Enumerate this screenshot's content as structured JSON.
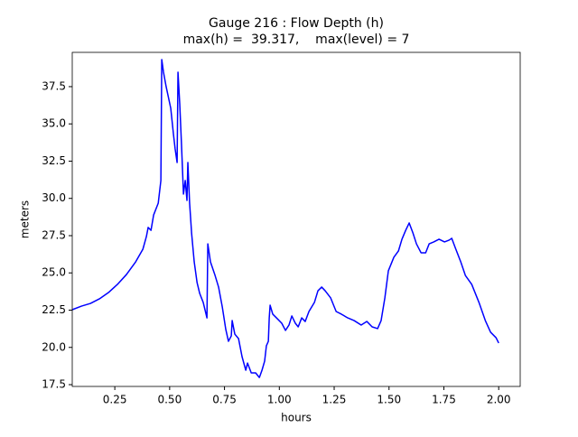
{
  "chart_data": {
    "type": "line",
    "title": "Gauge 216 : Flow Depth (h)",
    "subtitle": "max(h) =  39.317,    max(level) = 7",
    "x_label": "hours",
    "y_label": "meters",
    "xlim": [
      0.056,
      2.098
    ],
    "ylim": [
      17.38,
      39.8
    ],
    "xticks": [
      0.25,
      {
        "value": 0.5,
        "label": "0.50"
      },
      0.75,
      {
        "value": 1.0,
        "label": "1.00"
      },
      1.25,
      {
        "value": 1.5,
        "label": "1.50"
      },
      1.75,
      {
        "value": 2.0,
        "label": "2.00"
      }
    ],
    "yticks": [
      17.5,
      {
        "value": 20.0,
        "label": "20.0"
      },
      22.5,
      {
        "value": 25.0,
        "label": "25.0"
      },
      27.5,
      {
        "value": 30.0,
        "label": "30.0"
      },
      32.5,
      {
        "value": 35.0,
        "label": "35.0"
      },
      37.5
    ],
    "series": [
      {
        "name": "h",
        "color": "#0000ff",
        "x": [
          0.056,
          0.098,
          0.139,
          0.18,
          0.221,
          0.262,
          0.303,
          0.345,
          0.378,
          0.394,
          0.402,
          0.415,
          0.427,
          0.448,
          0.46,
          0.464,
          0.472,
          0.484,
          0.505,
          0.517,
          0.525,
          0.534,
          0.538,
          0.546,
          0.554,
          0.563,
          0.571,
          0.579,
          0.583,
          0.591,
          0.6,
          0.612,
          0.625,
          0.637,
          0.653,
          0.67,
          0.674,
          0.686,
          0.707,
          0.723,
          0.74,
          0.756,
          0.768,
          0.781,
          0.785,
          0.797,
          0.814,
          0.83,
          0.847,
          0.855,
          0.872,
          0.892,
          0.909,
          0.921,
          0.933,
          0.941,
          0.95,
          0.954,
          0.958,
          0.97,
          0.987,
          1.011,
          1.028,
          1.044,
          1.057,
          1.073,
          1.086,
          1.102,
          1.118,
          1.135,
          1.16,
          1.176,
          1.193,
          1.209,
          1.234,
          1.259,
          1.283,
          1.312,
          1.341,
          1.373,
          1.399,
          1.423,
          1.448,
          1.464,
          1.481,
          1.497,
          1.522,
          1.543,
          1.559,
          1.576,
          1.592,
          1.609,
          1.625,
          1.646,
          1.667,
          1.683,
          1.704,
          1.728,
          1.753,
          1.774,
          1.786,
          1.803,
          1.827,
          1.848,
          1.877,
          1.91,
          1.939,
          1.963,
          1.988,
          2.0
        ],
        "values": [
          22.53,
          22.77,
          22.95,
          23.26,
          23.68,
          24.23,
          24.89,
          25.74,
          26.59,
          27.44,
          28.05,
          27.86,
          28.89,
          29.68,
          31.2,
          39.317,
          38.47,
          37.5,
          36.05,
          34.35,
          33.32,
          32.41,
          38.47,
          36.35,
          33.62,
          30.29,
          31.2,
          29.86,
          32.41,
          29.68,
          27.68,
          25.74,
          24.35,
          23.62,
          23.02,
          21.98,
          26.95,
          25.74,
          24.83,
          24.05,
          22.71,
          21.2,
          20.41,
          20.77,
          21.8,
          20.89,
          20.59,
          19.38,
          18.47,
          18.95,
          18.29,
          18.29,
          17.98,
          18.47,
          19.08,
          20.11,
          20.41,
          21.98,
          22.83,
          22.23,
          21.98,
          21.62,
          21.14,
          21.5,
          22.11,
          21.62,
          21.38,
          21.98,
          21.74,
          22.41,
          23.02,
          23.8,
          24.05,
          23.8,
          23.32,
          22.41,
          22.23,
          21.98,
          21.8,
          21.5,
          21.74,
          21.38,
          21.26,
          21.8,
          23.32,
          25.14,
          26.05,
          26.47,
          27.26,
          27.86,
          28.35,
          27.68,
          26.95,
          26.35,
          26.35,
          26.95,
          27.08,
          27.26,
          27.08,
          27.2,
          27.32,
          26.65,
          25.74,
          24.83,
          24.23,
          23.02,
          21.8,
          21.02,
          20.65,
          20.29
        ]
      }
    ]
  }
}
